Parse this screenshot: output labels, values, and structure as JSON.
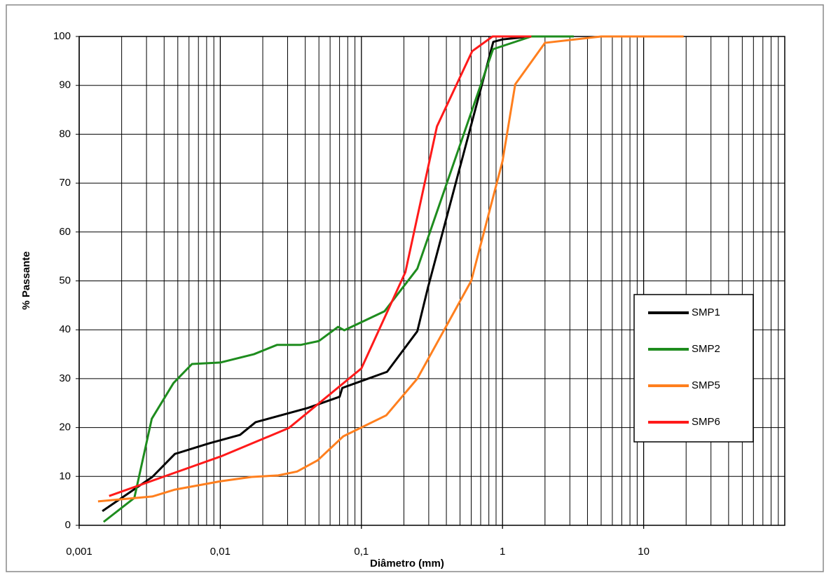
{
  "chart_data": {
    "type": "line",
    "xlabel": "Diâmetro (mm)",
    "ylabel": "% Passante",
    "log_x": true,
    "grid": true,
    "legend": "right",
    "xlim": [
      0.001,
      100
    ],
    "ylim": [
      0,
      100
    ],
    "xticks": [
      {
        "value": 0.001,
        "label": "0,001"
      },
      {
        "value": 0.01,
        "label": "0,01"
      },
      {
        "value": 0.1,
        "label": "0,1"
      },
      1,
      10
    ],
    "yticks": [
      0,
      10,
      20,
      30,
      40,
      50,
      60,
      70,
      80,
      90,
      100
    ],
    "series": [
      {
        "name": "SMP1",
        "color": "#000000",
        "x": [
          0.00146,
          0.0033,
          0.00477,
          0.0084,
          0.0138,
          0.0178,
          0.0417,
          0.0701,
          0.0732,
          0.152,
          0.249,
          0.296,
          0.86,
          1.0,
          1.6
        ],
        "values": [
          2.9,
          9.9,
          14.6,
          16.8,
          18.5,
          21.1,
          24,
          26.3,
          28.1,
          31.4,
          39.7,
          48.6,
          98.9,
          99.4,
          100
        ]
      },
      {
        "name": "SMP2",
        "color": "#1e8c1e",
        "x": [
          0.00149,
          0.00246,
          0.00327,
          0.00466,
          0.0063,
          0.01,
          0.0173,
          0.0252,
          0.037,
          0.05,
          0.0683,
          0.0757,
          0.146,
          0.249,
          0.857,
          1.6,
          3.2
        ],
        "values": [
          0.7,
          5.6,
          21.8,
          29.1,
          33,
          33.3,
          35,
          36.9,
          36.9,
          37.7,
          40.6,
          39.9,
          43.8,
          52.5,
          97.4,
          100,
          100
        ]
      },
      {
        "name": "SMP5",
        "color": "#ff7f1e",
        "x": [
          0.00136,
          0.0033,
          0.00477,
          0.01,
          0.0167,
          0.0257,
          0.035,
          0.049,
          0.0744,
          0.15,
          0.249,
          0.6,
          1.0,
          1.23,
          2.0,
          5,
          19.2
        ],
        "values": [
          4.9,
          5.9,
          7.3,
          9,
          9.9,
          10.2,
          11,
          13.3,
          18.2,
          22.5,
          30,
          50,
          74.5,
          90.2,
          98.7,
          100,
          100
        ]
      },
      {
        "name": "SMP6",
        "color": "#ff1a1a",
        "x": [
          0.00163,
          0.0101,
          0.0306,
          0.1,
          0.205,
          0.343,
          0.61,
          0.85,
          1.6
        ],
        "values": [
          6,
          14.1,
          19.9,
          32.1,
          51.8,
          81.6,
          97,
          100,
          100
        ]
      }
    ]
  }
}
